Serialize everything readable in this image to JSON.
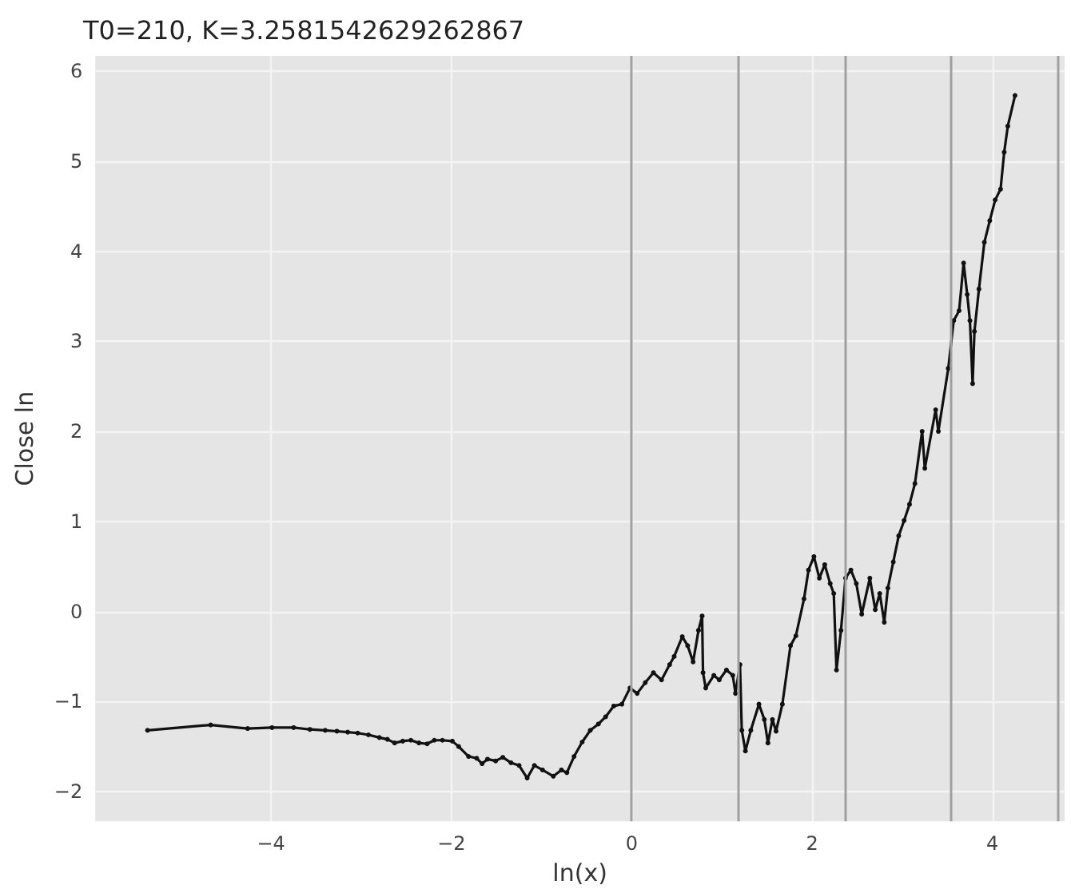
{
  "chart_data": {
    "type": "line",
    "title": "T0=210, K=3.2581542629262867",
    "xlabel": "ln(x)",
    "ylabel": "Close ln",
    "x": [
      -5.37,
      -4.67,
      -4.26,
      -3.99,
      -3.75,
      -3.57,
      -3.4,
      -3.27,
      -3.15,
      -3.04,
      -2.92,
      -2.8,
      -2.71,
      -2.63,
      -2.54,
      -2.45,
      -2.36,
      -2.27,
      -2.19,
      -2.1,
      -1.99,
      -1.92,
      -1.81,
      -1.72,
      -1.66,
      -1.6,
      -1.51,
      -1.43,
      -1.34,
      -1.25,
      -1.16,
      -1.08,
      -0.99,
      -0.87,
      -0.78,
      -0.72,
      -0.64,
      -0.55,
      -0.46,
      -0.37,
      -0.29,
      -0.2,
      -0.11,
      -0.02,
      0.06,
      0.15,
      0.24,
      0.33,
      0.42,
      0.47,
      0.56,
      0.62,
      0.68,
      0.74,
      0.78,
      0.79,
      0.82,
      0.91,
      0.97,
      1.05,
      1.12,
      1.15,
      1.2,
      1.22,
      1.26,
      1.32,
      1.41,
      1.47,
      1.51,
      1.56,
      1.6,
      1.67,
      1.76,
      1.82,
      1.91,
      1.96,
      2.02,
      2.08,
      2.14,
      2.2,
      2.24,
      2.27,
      2.32,
      2.37,
      2.43,
      2.49,
      2.55,
      2.64,
      2.7,
      2.75,
      2.8,
      2.84,
      2.9,
      2.96,
      3.02,
      3.08,
      3.14,
      3.22,
      3.25,
      3.37,
      3.4,
      3.51,
      3.57,
      3.63,
      3.68,
      3.72,
      3.75,
      3.78,
      3.8,
      3.85,
      3.91,
      3.97,
      4.03,
      4.09,
      4.13,
      4.17,
      4.25
    ],
    "values": [
      -1.32,
      -1.26,
      -1.3,
      -1.29,
      -1.29,
      -1.31,
      -1.32,
      -1.33,
      -1.34,
      -1.35,
      -1.37,
      -1.4,
      -1.42,
      -1.46,
      -1.44,
      -1.43,
      -1.46,
      -1.47,
      -1.43,
      -1.43,
      -1.44,
      -1.5,
      -1.61,
      -1.63,
      -1.69,
      -1.64,
      -1.66,
      -1.62,
      -1.68,
      -1.71,
      -1.85,
      -1.71,
      -1.76,
      -1.83,
      -1.76,
      -1.79,
      -1.61,
      -1.45,
      -1.32,
      -1.25,
      -1.17,
      -1.05,
      -1.03,
      -0.85,
      -0.91,
      -0.79,
      -0.68,
      -0.76,
      -0.59,
      -0.5,
      -0.28,
      -0.38,
      -0.56,
      -0.21,
      -0.05,
      -0.68,
      -0.85,
      -0.71,
      -0.76,
      -0.65,
      -0.71,
      -0.91,
      -0.59,
      -1.32,
      -1.55,
      -1.32,
      -1.03,
      -1.2,
      -1.46,
      -1.2,
      -1.33,
      -1.03,
      -0.38,
      -0.27,
      0.14,
      0.46,
      0.61,
      0.37,
      0.52,
      0.31,
      0.2,
      -0.65,
      -0.21,
      0.37,
      0.46,
      0.31,
      -0.03,
      0.37,
      0.02,
      0.2,
      -0.12,
      0.26,
      0.55,
      0.84,
      1.01,
      1.19,
      1.42,
      2.0,
      1.59,
      2.24,
      2.0,
      2.7,
      3.23,
      3.34,
      3.87,
      3.52,
      3.23,
      2.53,
      3.11,
      3.58,
      4.1,
      4.34,
      4.57,
      4.69,
      5.1,
      5.39,
      5.73
    ],
    "color": "#111111",
    "marker": "circle",
    "line_style": "solid",
    "xlim": [
      -5.95,
      4.8
    ],
    "xticks": [
      -4,
      -2,
      0,
      2,
      4
    ],
    "ylim": [
      -2.33,
      6.17
    ],
    "yticks": [
      -2,
      -1,
      0,
      1,
      2,
      3,
      4,
      5,
      6
    ],
    "grid": true,
    "ref_lines": [
      {
        "axis": "x",
        "value": 0,
        "color": "#a0a0a0"
      },
      {
        "axis": "x",
        "value": 1.18,
        "color": "#a0a0a0"
      },
      {
        "axis": "x",
        "value": 2.36,
        "color": "#a0a0a0"
      },
      {
        "axis": "x",
        "value": 3.54,
        "color": "#a0a0a0"
      },
      {
        "axis": "x",
        "value": 4.73,
        "color": "#a0a0a0"
      }
    ]
  }
}
